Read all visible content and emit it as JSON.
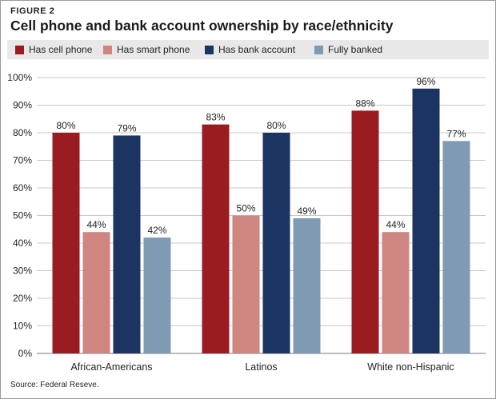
{
  "figure_label": "FIGURE 2",
  "chart_data": {
    "type": "bar",
    "title": "Cell phone and bank account ownership by race/ethnicity",
    "categories": [
      "African-Americans",
      "Latinos",
      "White non-Hispanic"
    ],
    "series": [
      {
        "name": "Has cell phone",
        "color": "#9b1c20",
        "values": [
          80,
          83,
          88
        ],
        "labels": [
          "80%",
          "83%",
          "88%"
        ]
      },
      {
        "name": "Has smart phone",
        "color": "#cf8580",
        "values": [
          44,
          50,
          44
        ],
        "labels": [
          "44%",
          "50%",
          "44%"
        ]
      },
      {
        "name": "Has bank account",
        "color": "#1c3461",
        "values": [
          79,
          80,
          96
        ],
        "labels": [
          "79%",
          "80%",
          "96%"
        ]
      },
      {
        "name": "Fully banked",
        "color": "#7f9ab3",
        "values": [
          42,
          49,
          77
        ],
        "labels": [
          "42%",
          "49%",
          "77%"
        ]
      }
    ],
    "ylim": [
      0,
      100
    ],
    "yticks": [
      0,
      10,
      20,
      30,
      40,
      50,
      60,
      70,
      80,
      90,
      100
    ],
    "ytick_labels": [
      "0%",
      "10%",
      "20%",
      "30%",
      "40%",
      "50%",
      "60%",
      "70%",
      "80%",
      "90%",
      "100%"
    ],
    "grid": true,
    "legend_position": "top"
  },
  "source": "Source: Federal Reseve."
}
